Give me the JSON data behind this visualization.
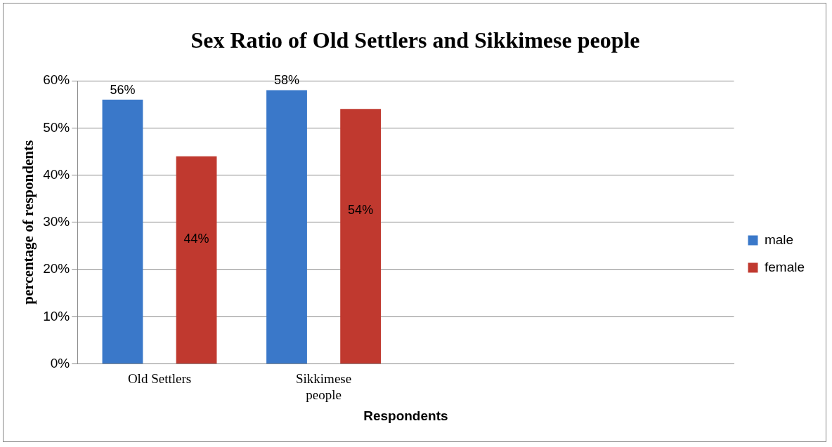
{
  "chart_data": {
    "type": "bar",
    "title": "Sex Ratio of Old Settlers and Sikkimese people",
    "xlabel": "Respondents",
    "ylabel": "percentage of respondents",
    "categories": [
      "Old Settlers",
      "Sikkimese people",
      null,
      null
    ],
    "series": [
      {
        "name": "male",
        "color": "#3a78c9",
        "values": [
          56,
          58,
          null,
          null
        ],
        "value_labels": [
          "56%",
          "58%",
          null,
          null
        ]
      },
      {
        "name": "female",
        "color": "#c0392f",
        "values": [
          44,
          54,
          null,
          null
        ],
        "value_labels": [
          "44%",
          "54%",
          null,
          null
        ]
      }
    ],
    "ylim": [
      0,
      60
    ],
    "yticks": [
      {
        "value": 0,
        "label": "0%"
      },
      {
        "value": 10,
        "label": "10%"
      },
      {
        "value": 20,
        "label": "20%"
      },
      {
        "value": 30,
        "label": "30%"
      },
      {
        "value": 40,
        "label": "40%"
      },
      {
        "value": 50,
        "label": "50%"
      },
      {
        "value": 60,
        "label": "60%"
      }
    ],
    "grid": "y",
    "legend": "right"
  }
}
